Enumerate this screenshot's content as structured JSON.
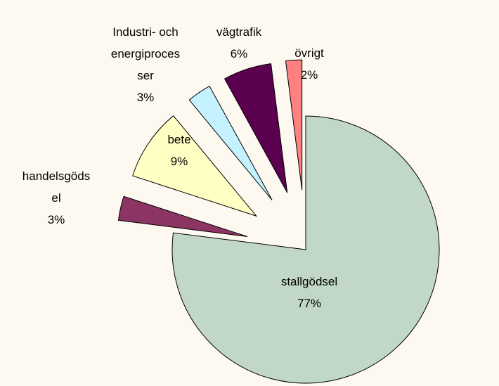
{
  "chart_data": {
    "type": "pie",
    "categories": [
      "stallgödsel",
      "handelsgödsel",
      "bete",
      "Industri- och energiprocesser",
      "vägtrafik",
      "övrigt"
    ],
    "values": [
      77,
      3,
      9,
      3,
      6,
      2
    ],
    "value_labels": [
      "77%",
      "3%",
      "9%",
      "3%",
      "6%",
      "2%"
    ],
    "colors": [
      "#c2d8c6",
      "#8c3462",
      "#ffffc4",
      "#c4f2ff",
      "#5c0050",
      "#ff8080"
    ]
  }
}
